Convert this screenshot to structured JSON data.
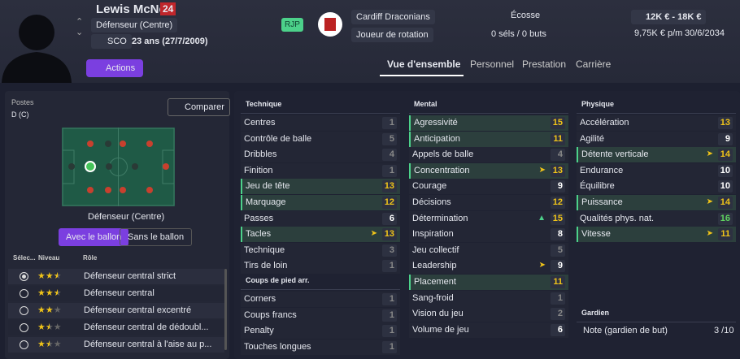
{
  "header": {
    "name": "Lewis McNeill",
    "number": "24",
    "position": "Défenseur (Centre)",
    "nation_code": "SCO",
    "age": "23 ans (27/7/2009)",
    "tag": "RJP",
    "club": "Cardiff Draconians",
    "role_status": "Joueur de rotation",
    "nationality": "Écosse",
    "caps": "0 séls / 0 buts",
    "value": "12K € - 18K €",
    "wage": "9,75K € p/m",
    "contract": "30/6/2034",
    "actions": "Actions"
  },
  "tabs": [
    "Vue d'ensemble",
    "Personnel",
    "Prestation",
    "Carrière"
  ],
  "left": {
    "positions_title": "Postes",
    "positions": "D (C)",
    "compare": "Comparer",
    "pitch_label": "Défenseur (Centre)",
    "toggle": [
      "Avec le ballon",
      "Sans le ballon"
    ],
    "columns": [
      "Sélec...",
      "Niveau",
      "Rôle"
    ],
    "roles": [
      {
        "name": "Défenseur central strict",
        "stars": 2.5,
        "selected": true
      },
      {
        "name": "Défenseur central",
        "stars": 2.5,
        "selected": false
      },
      {
        "name": "Défenseur central excentré",
        "stars": 2,
        "selected": false
      },
      {
        "name": "Défenseur central de dédoubl...",
        "stars": 1.5,
        "selected": false
      },
      {
        "name": "Défenseur central à l'aise au p...",
        "stars": 1.5,
        "selected": false
      }
    ]
  },
  "groups": [
    {
      "title": "Technique",
      "col": 0,
      "rows": [
        {
          "name": "Centres",
          "value": 1
        },
        {
          "name": "Contrôle de balle",
          "value": 5
        },
        {
          "name": "Dribbles",
          "value": 4
        },
        {
          "name": "Finition",
          "value": 1
        },
        {
          "name": "Jeu de tête",
          "value": 13,
          "key": true
        },
        {
          "name": "Marquage",
          "value": 12,
          "key": true
        },
        {
          "name": "Passes",
          "value": 6
        },
        {
          "name": "Tacles",
          "value": 13,
          "key": true,
          "icon": "yellow"
        },
        {
          "name": "Technique",
          "value": 3
        },
        {
          "name": "Tirs de loin",
          "value": 1
        }
      ]
    },
    {
      "title": "Coups de pied arr.",
      "col": 0,
      "rows": [
        {
          "name": "Corners",
          "value": 1
        },
        {
          "name": "Coups francs",
          "value": 1
        },
        {
          "name": "Penalty",
          "value": 1
        },
        {
          "name": "Touches longues",
          "value": 1
        }
      ]
    },
    {
      "title": "Mental",
      "col": 1,
      "rows": [
        {
          "name": "Agressivité",
          "value": 15,
          "key": true
        },
        {
          "name": "Anticipation",
          "value": 11,
          "key": true
        },
        {
          "name": "Appels de balle",
          "value": 4
        },
        {
          "name": "Concentration",
          "value": 13,
          "key": true,
          "icon": "yellow"
        },
        {
          "name": "Courage",
          "value": 9
        },
        {
          "name": "Décisions",
          "value": 12
        },
        {
          "name": "Détermination",
          "value": 15,
          "icon": "green"
        },
        {
          "name": "Inspiration",
          "value": 8
        },
        {
          "name": "Jeu collectif",
          "value": 5
        },
        {
          "name": "Leadership",
          "value": 9,
          "icon": "yellow"
        },
        {
          "name": "Placement",
          "value": 11,
          "key": true
        },
        {
          "name": "Sang-froid",
          "value": 1
        },
        {
          "name": "Vision du jeu",
          "value": 2
        },
        {
          "name": "Volume de jeu",
          "value": 6
        }
      ]
    },
    {
      "title": "Physique",
      "col": 2,
      "rows": [
        {
          "name": "Accélération",
          "value": 13
        },
        {
          "name": "Agilité",
          "value": 9
        },
        {
          "name": "Détente verticale",
          "value": 14,
          "key": true,
          "icon": "yellow"
        },
        {
          "name": "Endurance",
          "value": 10
        },
        {
          "name": "Équilibre",
          "value": 10
        },
        {
          "name": "Puissance",
          "value": 14,
          "key": true,
          "icon": "yellow"
        },
        {
          "name": "Qualités phys. nat.",
          "value": 16
        },
        {
          "name": "Vitesse",
          "value": 11,
          "key": true,
          "icon": "yellow"
        }
      ]
    }
  ],
  "goalkeeper": {
    "title": "Gardien",
    "label": "Note (gardien de but)",
    "value": "3 /10"
  }
}
